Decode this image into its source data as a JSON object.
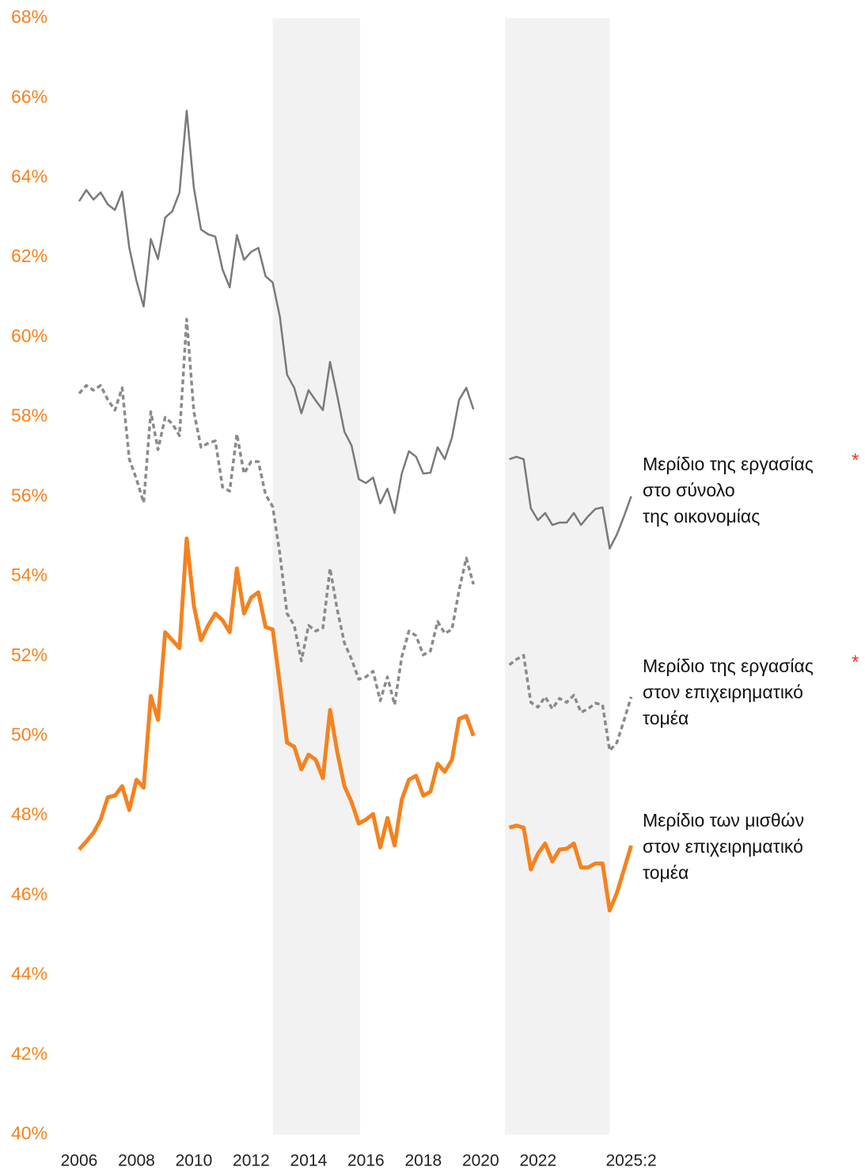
{
  "chart_data": {
    "type": "line",
    "x": [
      2006,
      2006.25,
      2006.5,
      2006.75,
      2007,
      2007.25,
      2007.5,
      2007.75,
      2008,
      2008.25,
      2008.5,
      2008.75,
      2009,
      2009.25,
      2009.5,
      2009.75,
      2010,
      2010.25,
      2010.5,
      2010.75,
      2011,
      2011.25,
      2011.5,
      2011.75,
      2012,
      2012.25,
      2012.5,
      2012.75,
      2013,
      2013.25,
      2013.5,
      2013.75,
      2014,
      2014.25,
      2014.5,
      2014.75,
      2015,
      2015.25,
      2015.5,
      2015.75,
      2016,
      2016.25,
      2016.5,
      2016.75,
      2017,
      2017.25,
      2017.5,
      2017.75,
      2018,
      2018.25,
      2018.5,
      2018.75,
      2019,
      2019.25,
      2019.5,
      2019.75,
      2020,
      2020.25,
      2020.5,
      2020.75,
      2021,
      2021.25,
      2021.5,
      2021.75,
      2022,
      2022.25,
      2022.5,
      2022.75,
      2023,
      2023.25,
      2023.5,
      2023.75,
      2024,
      2024.25,
      2024.5,
      2024.75,
      2025,
      2025.25
    ],
    "series": [
      {
        "name": "Μερίδιο της εργασίας\nστο σύνολο\nτης οικονομίας",
        "note": "*",
        "color": "#7a7a7a",
        "style": "solid",
        "width": 2.5,
        "values": [
          63.41,
          63.69,
          63.45,
          63.63,
          63.33,
          63.19,
          63.65,
          62.24,
          61.41,
          60.77,
          62.46,
          61.96,
          63.0,
          63.16,
          63.63,
          65.68,
          63.75,
          62.7,
          62.58,
          62.52,
          61.7,
          61.25,
          62.56,
          61.94,
          62.14,
          62.24,
          61.53,
          61.37,
          60.51,
          59.06,
          58.73,
          58.09,
          58.67,
          58.41,
          58.17,
          59.38,
          58.53,
          57.63,
          57.28,
          56.44,
          56.34,
          56.48,
          55.83,
          56.2,
          55.59,
          56.58,
          57.14,
          57.0,
          56.58,
          56.6,
          57.24,
          56.94,
          57.48,
          58.43,
          58.73,
          58.19,
          null,
          null,
          null,
          null,
          56.94,
          57.0,
          56.94,
          55.71,
          55.41,
          55.59,
          55.29,
          55.35,
          55.35,
          55.59,
          55.29,
          55.51,
          55.69,
          55.73,
          54.7,
          55.05,
          55.51,
          56.01
        ]
      },
      {
        "name": "Μερίδιο της εργασίας\nστον επιχειρηματικό\nτομέα",
        "note": "*",
        "color": "#8a8a8a",
        "style": "dashed",
        "width": 3.5,
        "values": [
          58.59,
          58.79,
          58.67,
          58.79,
          58.43,
          58.17,
          58.73,
          56.94,
          56.44,
          55.85,
          58.13,
          57.18,
          57.99,
          57.83,
          57.53,
          60.45,
          58.13,
          57.24,
          57.34,
          57.4,
          56.24,
          56.14,
          57.57,
          56.58,
          56.88,
          56.88,
          56.05,
          55.75,
          54.56,
          53.07,
          52.77,
          51.88,
          52.77,
          52.63,
          52.71,
          54.2,
          53.17,
          52.33,
          51.92,
          51.42,
          51.48,
          51.62,
          50.88,
          51.48,
          50.78,
          51.98,
          52.63,
          52.51,
          52.03,
          52.13,
          52.87,
          52.57,
          52.67,
          53.66,
          54.46,
          53.8,
          null,
          null,
          null,
          null,
          51.78,
          51.92,
          52.02,
          50.84,
          50.72,
          50.98,
          50.68,
          50.94,
          50.84,
          51.02,
          50.59,
          50.68,
          50.82,
          50.78,
          49.63,
          49.83,
          50.39,
          50.98
        ]
      },
      {
        "name": "Μερίδιο των μισθών\nστον επιχειρηματικό\nτομέα",
        "color": "#f5821f",
        "style": "solid",
        "width": 5,
        "values": [
          47.15,
          47.35,
          47.57,
          47.9,
          48.46,
          48.5,
          48.74,
          48.14,
          48.9,
          48.7,
          51.0,
          50.4,
          52.6,
          52.4,
          52.2,
          54.95,
          53.27,
          52.4,
          52.77,
          53.07,
          52.9,
          52.6,
          54.2,
          53.07,
          53.47,
          53.6,
          52.73,
          52.67,
          51.28,
          49.83,
          49.73,
          49.16,
          49.53,
          49.4,
          48.94,
          50.65,
          49.6,
          48.74,
          48.34,
          47.8,
          47.9,
          48.04,
          47.2,
          47.94,
          47.25,
          48.4,
          48.9,
          49.0,
          48.5,
          48.6,
          49.3,
          49.1,
          49.4,
          50.43,
          50.5,
          50.0,
          null,
          null,
          null,
          null,
          47.7,
          47.75,
          47.7,
          46.65,
          47.05,
          47.3,
          46.85,
          47.15,
          47.17,
          47.3,
          46.7,
          46.7,
          46.8,
          46.8,
          45.62,
          46.06,
          46.65,
          47.25
        ]
      }
    ],
    "xlim": [
      2004.8,
      2026.2
    ],
    "xticks": [
      2006,
      2008,
      2010,
      2012,
      2014,
      2016,
      2018,
      2020,
      2022,
      {
        "value": 2025.25,
        "label": "2025:2"
      }
    ],
    "ylim": [
      40,
      68
    ],
    "yticks": [
      {
        "value": 40,
        "label": "40%"
      },
      {
        "value": 42,
        "label": "42%"
      },
      {
        "value": 44,
        "label": "44%"
      },
      {
        "value": 46,
        "label": "46%"
      },
      {
        "value": 48,
        "label": "48%"
      },
      {
        "value": 50,
        "label": "50%"
      },
      {
        "value": 52,
        "label": "52%"
      },
      {
        "value": 54,
        "label": "54%"
      },
      {
        "value": 56,
        "label": "56%"
      },
      {
        "value": 58,
        "label": "58%"
      },
      {
        "value": 60,
        "label": "60%"
      },
      {
        "value": 62,
        "label": "62%"
      },
      {
        "value": 64,
        "label": "64%"
      },
      {
        "value": 66,
        "label": "66%"
      },
      {
        "value": 68,
        "label": "68%"
      }
    ],
    "ytick_color": "#f5821f",
    "shaded_periods": [
      [
        2012.75,
        2015.8
      ],
      [
        2020.85,
        2024.5
      ]
    ],
    "shade_color": "#f2f2f2",
    "grid": false
  }
}
